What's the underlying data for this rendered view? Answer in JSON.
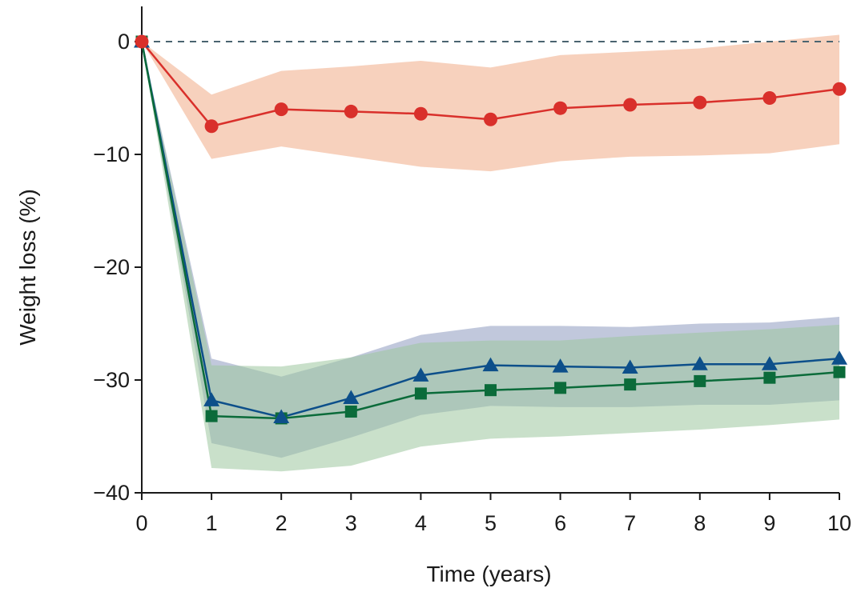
{
  "chart_data": {
    "type": "line",
    "xlabel": "Time (years)",
    "ylabel": "Weight loss (%)",
    "xlim": [
      0,
      10
    ],
    "ylim": [
      -40,
      0
    ],
    "x_ticks": [
      0,
      1,
      2,
      3,
      4,
      5,
      6,
      7,
      8,
      9,
      10
    ],
    "y_ticks": [
      0,
      -10,
      -20,
      -30,
      -40
    ],
    "y_tick_labels": [
      "0",
      "−10",
      "−20",
      "−30",
      "−40"
    ],
    "reference_line": {
      "y": 0,
      "style": "dashed",
      "color": "#4a6470"
    },
    "grid": false,
    "legend": "none",
    "x": [
      0,
      1,
      2,
      3,
      4,
      5,
      6,
      7,
      8,
      9,
      10
    ],
    "series": [
      {
        "marker": "circle",
        "color": "#d9302b",
        "band_color": "#f2b899",
        "band_opacity": 0.65,
        "values": [
          0,
          -7.5,
          -6.0,
          -6.2,
          -6.4,
          -6.9,
          -5.9,
          -5.6,
          -5.4,
          -5.0,
          -4.2
        ],
        "upper": [
          0,
          -4.7,
          -2.6,
          -2.2,
          -1.7,
          -2.3,
          -1.2,
          -0.9,
          -0.6,
          0.0,
          0.6
        ],
        "lower": [
          0,
          -10.4,
          -9.3,
          -10.2,
          -11.1,
          -11.5,
          -10.6,
          -10.2,
          -10.1,
          -9.9,
          -9.1
        ]
      },
      {
        "marker": "triangle",
        "color": "#0d4f8a",
        "band_color": "#7585b2",
        "band_opacity": 0.45,
        "values": [
          0,
          -31.8,
          -33.3,
          -31.6,
          -29.6,
          -28.7,
          -28.8,
          -28.9,
          -28.6,
          -28.6,
          -28.1
        ],
        "upper": [
          0,
          -28.1,
          -29.7,
          -28.0,
          -26.0,
          -25.2,
          -25.2,
          -25.3,
          -25.0,
          -24.9,
          -24.4
        ],
        "lower": [
          0,
          -35.6,
          -36.9,
          -35.1,
          -33.1,
          -32.3,
          -32.4,
          -32.4,
          -32.2,
          -32.2,
          -31.8
        ]
      },
      {
        "marker": "square",
        "color": "#0b6b3a",
        "band_color": "#9cc79f",
        "band_opacity": 0.55,
        "values": [
          0,
          -33.2,
          -33.4,
          -32.8,
          -31.2,
          -30.9,
          -30.7,
          -30.4,
          -30.1,
          -29.8,
          -29.3
        ],
        "upper": [
          0,
          -28.7,
          -28.8,
          -28.0,
          -26.7,
          -26.5,
          -26.5,
          -26.1,
          -25.8,
          -25.5,
          -25.1
        ],
        "lower": [
          0,
          -37.8,
          -38.1,
          -37.6,
          -35.9,
          -35.2,
          -35.0,
          -34.7,
          -34.4,
          -34.0,
          -33.5
        ]
      }
    ]
  }
}
